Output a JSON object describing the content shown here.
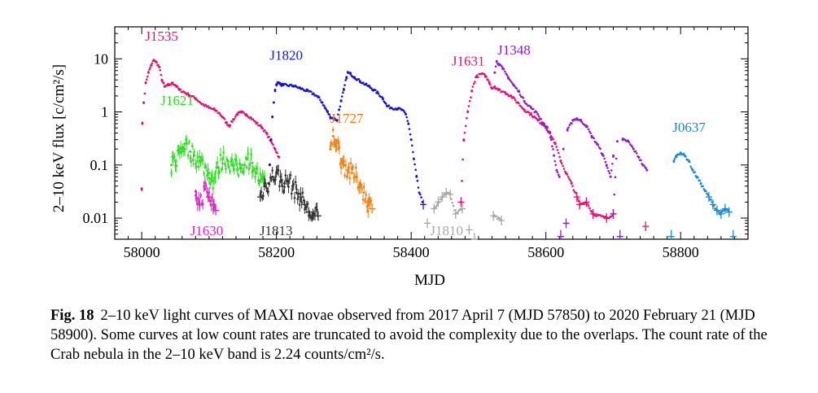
{
  "figure": {
    "chart_data": {
      "type": "scatter",
      "xlabel": "MJD",
      "ylabel": "2–10 keV flux [c/cm²/s]",
      "xlim": [
        57960,
        58900
      ],
      "ylim_log": [
        0.004,
        40
      ],
      "y_scale": "log",
      "x_ticks": [
        58000,
        58200,
        58400,
        58600,
        58800
      ],
      "x_tick_labels": [
        "58000",
        "58200",
        "58400",
        "58600",
        "58800"
      ],
      "y_ticks": [
        0.01,
        0.1,
        1,
        10
      ],
      "y_tick_labels": [
        "0.01",
        "0.1",
        "1",
        "10"
      ],
      "series": [
        {
          "name": "J1535",
          "color": "#e8106e",
          "label_pos": [
            58005,
            22
          ],
          "points": [
            [
              58000,
              0.036
            ],
            [
              58001,
              0.6
            ],
            [
              58003,
              1.5
            ],
            [
              58006,
              3.5
            ],
            [
              58010,
              5.5
            ],
            [
              58014,
              7.5
            ],
            [
              58018,
              9.5
            ],
            [
              58022,
              8.5
            ],
            [
              58026,
              7
            ],
            [
              58030,
              4
            ],
            [
              58034,
              3
            ],
            [
              58040,
              3.2
            ],
            [
              58046,
              3.5
            ],
            [
              58050,
              3.2
            ],
            [
              58056,
              2.6
            ],
            [
              58062,
              2.4
            ],
            [
              58070,
              2.1
            ],
            [
              58080,
              1.8
            ],
            [
              58090,
              1.4
            ],
            [
              58100,
              1.2
            ],
            [
              58108,
              1.1
            ],
            [
              58115,
              0.95
            ],
            [
              58120,
              0.8
            ],
            [
              58126,
              0.62
            ],
            [
              58130,
              0.55
            ],
            [
              58136,
              0.72
            ],
            [
              58142,
              0.92
            ],
            [
              58148,
              0.98
            ],
            [
              58155,
              0.9
            ],
            [
              58162,
              0.78
            ],
            [
              58170,
              0.62
            ],
            [
              58178,
              0.52
            ],
            [
              58186,
              0.38
            ],
            [
              58192,
              0.28
            ],
            [
              58198,
              0.2
            ],
            [
              58204,
              0.14
            ]
          ]
        },
        {
          "name": "J1820",
          "color": "#1515d8",
          "label_pos": [
            58190,
            9.5
          ],
          "points": [
            [
              58190,
              0.1
            ],
            [
              58192,
              0.3
            ],
            [
              58194,
              0.8
            ],
            [
              58196,
              1.5
            ],
            [
              58198,
              2.6
            ],
            [
              58200,
              3.3
            ],
            [
              58203,
              3.6
            ],
            [
              58206,
              3.3
            ],
            [
              58210,
              3.2
            ],
            [
              58225,
              3.1
            ],
            [
              58235,
              2.8
            ],
            [
              58245,
              2.5
            ],
            [
              58255,
              2.2
            ],
            [
              58262,
              1.9
            ],
            [
              58268,
              1.5
            ],
            [
              58272,
              1.2
            ],
            [
              58276,
              1.0
            ],
            [
              58280,
              0.8
            ],
            [
              58290,
              0.7
            ],
            [
              58293,
              1.1
            ],
            [
              58296,
              1.6
            ],
            [
              58300,
              2.6
            ],
            [
              58304,
              4.5
            ],
            [
              58306,
              5.5
            ],
            [
              58310,
              5.2
            ],
            [
              58316,
              4.5
            ],
            [
              58324,
              3.8
            ],
            [
              58332,
              3.3
            ],
            [
              58338,
              3.0
            ],
            [
              58344,
              2.6
            ],
            [
              58350,
              2.3
            ],
            [
              58358,
              1.8
            ],
            [
              58364,
              1.3
            ],
            [
              58370,
              1.2
            ],
            [
              58380,
              1.15
            ],
            [
              58386,
              1.1
            ],
            [
              58392,
              0.9
            ],
            [
              58396,
              0.6
            ],
            [
              58400,
              0.3
            ],
            [
              58404,
              0.13
            ],
            [
              58408,
              0.06
            ],
            [
              58412,
              0.03
            ],
            [
              58418,
              0.018
            ]
          ]
        },
        {
          "name": "J1621",
          "color": "#28e01a",
          "label_pos": [
            58028,
            1.35
          ],
          "points": [
            [
              58044,
              0.1
            ],
            [
              58050,
              0.12
            ],
            [
              58058,
              0.2
            ],
            [
              58064,
              0.25
            ],
            [
              58072,
              0.18
            ],
            [
              58078,
              0.15
            ],
            [
              58086,
              0.12
            ],
            [
              58094,
              0.09
            ],
            [
              58100,
              0.07
            ],
            [
              58106,
              0.05
            ],
            [
              58114,
              0.09
            ],
            [
              58120,
              0.13
            ],
            [
              58128,
              0.12
            ],
            [
              58134,
              0.1
            ],
            [
              58142,
              0.08
            ],
            [
              58150,
              0.1
            ],
            [
              58156,
              0.13
            ],
            [
              58164,
              0.11
            ],
            [
              58170,
              0.07
            ],
            [
              58176,
              0.05
            ],
            [
              58184,
              0.04
            ]
          ]
        },
        {
          "name": "J1630",
          "color": "#e620c8",
          "label_pos": [
            58072,
            0.0048
          ],
          "points": [
            [
              58080,
              0.032
            ],
            [
              58086,
              0.018
            ],
            [
              58094,
              0.035
            ],
            [
              58100,
              0.025
            ],
            [
              58106,
              0.018
            ],
            [
              58110,
              0.014
            ]
          ]
        },
        {
          "name": "J1813",
          "color": "#333333",
          "label_pos": [
            58175,
            0.0048
          ],
          "points": [
            [
              58176,
              0.025
            ],
            [
              58182,
              0.04
            ],
            [
              58188,
              0.045
            ],
            [
              58194,
              0.06
            ],
            [
              58200,
              0.07
            ],
            [
              58206,
              0.05
            ],
            [
              58212,
              0.045
            ],
            [
              58218,
              0.05
            ],
            [
              58224,
              0.04
            ],
            [
              58230,
              0.03
            ],
            [
              58236,
              0.025
            ],
            [
              58242,
              0.018
            ],
            [
              58248,
              0.013
            ],
            [
              58254,
              0.011
            ],
            [
              58262,
              0.011
            ]
          ]
        },
        {
          "name": "J1727",
          "color": "#f08010",
          "label_pos": [
            58280,
            0.62
          ],
          "points": [
            [
              58280,
              0.2
            ],
            [
              58284,
              0.35
            ],
            [
              58288,
              0.3
            ],
            [
              58292,
              0.2
            ],
            [
              58296,
              0.13
            ],
            [
              58300,
              0.1
            ],
            [
              58306,
              0.08
            ],
            [
              58312,
              0.07
            ],
            [
              58318,
              0.06
            ],
            [
              58324,
              0.045
            ],
            [
              58330,
              0.03
            ],
            [
              58336,
              0.02
            ],
            [
              58342,
              0.015
            ]
          ]
        },
        {
          "name": "J1810",
          "color": "#a8a8a8",
          "label_pos": [
            58428,
            0.0048
          ],
          "points": [
            [
              58424,
              0.008
            ],
            [
              58434,
              0.015
            ],
            [
              58440,
              0.02
            ],
            [
              58446,
              0.025
            ],
            [
              58452,
              0.03
            ],
            [
              58458,
              0.028
            ],
            [
              58466,
              0.012
            ],
            [
              58476,
              0.015
            ],
            [
              58486,
              0.006
            ],
            [
              58494,
              0.004
            ],
            [
              58522,
              0.011
            ],
            [
              58534,
              0.009
            ]
          ]
        },
        {
          "name": "J1631",
          "color": "#e8106e",
          "label_pos": [
            58460,
            7.5
          ],
          "points": [
            [
              58474,
              0.02
            ],
            [
              58478,
              0.3
            ],
            [
              58484,
              1.0
            ],
            [
              58490,
              2.5
            ],
            [
              58496,
              4.5
            ],
            [
              58504,
              5.2
            ],
            [
              58510,
              4.8
            ],
            [
              58516,
              3.6
            ],
            [
              58520,
              2.8
            ],
            [
              58524,
              3
            ],
            [
              58530,
              2.6
            ],
            [
              58540,
              2.3
            ],
            [
              58548,
              2.0
            ],
            [
              58558,
              1.5
            ],
            [
              58568,
              1.1
            ],
            [
              58578,
              0.9
            ],
            [
              58588,
              0.7
            ],
            [
              58598,
              0.55
            ],
            [
              58606,
              0.4
            ],
            [
              58614,
              0.25
            ],
            [
              58622,
              0.12
            ],
            [
              58630,
              0.07
            ],
            [
              58638,
              0.045
            ],
            [
              58646,
              0.025
            ],
            [
              58650,
              0.018
            ],
            [
              58660,
              0.02
            ],
            [
              58670,
              0.012
            ],
            [
              58690,
              0.01
            ],
            [
              58700,
              0.012
            ],
            [
              58748,
              0.007
            ]
          ]
        },
        {
          "name": "J1348",
          "color": "#8e1cd8",
          "label_pos": [
            58528,
            12
          ],
          "points": [
            [
              58524,
              5.5
            ],
            [
              58527,
              9
            ],
            [
              58530,
              8
            ],
            [
              58536,
              6.5
            ],
            [
              58544,
              4.5
            ],
            [
              58552,
              3.2
            ],
            [
              58560,
              2.4
            ],
            [
              58568,
              1.6
            ],
            [
              58578,
              1.2
            ],
            [
              58588,
              0.9
            ],
            [
              58596,
              0.62
            ],
            [
              58602,
              0.5
            ],
            [
              58608,
              0.3
            ],
            [
              58612,
              0.15
            ],
            [
              58616,
              0.08
            ],
            [
              58620,
              0.06
            ],
            [
              58626,
              0.2
            ],
            [
              58632,
              0.45
            ],
            [
              58640,
              0.7
            ],
            [
              58646,
              0.75
            ],
            [
              58652,
              0.68
            ],
            [
              58660,
              0.55
            ],
            [
              58668,
              0.35
            ],
            [
              58676,
              0.25
            ],
            [
              58684,
              0.16
            ],
            [
              58690,
              0.1
            ],
            [
              58696,
              0.06
            ],
            [
              58700,
              0.15
            ],
            [
              58706,
              0.28
            ],
            [
              58714,
              0.3
            ],
            [
              58722,
              0.28
            ],
            [
              58730,
              0.2
            ],
            [
              58738,
              0.14
            ],
            [
              58744,
              0.1
            ],
            [
              58750,
              0.08
            ],
            [
              58622,
              0.0045
            ],
            [
              58630,
              0.008
            ],
            [
              58700,
              0.012
            ],
            [
              58710,
              0.0045
            ]
          ]
        },
        {
          "name": "J0637",
          "color": "#1a88d8",
          "label_pos": [
            58788,
            0.42
          ],
          "points": [
            [
              58790,
              0.12
            ],
            [
              58794,
              0.15
            ],
            [
              58800,
              0.17
            ],
            [
              58806,
              0.15
            ],
            [
              58812,
              0.12
            ],
            [
              58818,
              0.08
            ],
            [
              58824,
              0.06
            ],
            [
              58830,
              0.045
            ],
            [
              58836,
              0.033
            ],
            [
              58842,
              0.025
            ],
            [
              58848,
              0.018
            ],
            [
              58854,
              0.014
            ],
            [
              58860,
              0.012
            ],
            [
              58866,
              0.015
            ],
            [
              58872,
              0.013
            ],
            [
              58878,
              0.0045
            ],
            [
              58786,
              0.0045
            ]
          ]
        }
      ]
    }
  },
  "caption": {
    "label": "Fig. 18",
    "text": "2–10 keV light curves of MAXI novae observed from 2017 April 7 (MJD 57850) to 2020 February 21 (MJD 58900). Some curves at low count rates are truncated to avoid the complexity due to the overlaps. The count rate of the Crab nebula in the 2–10 keV band is 2.24 counts/cm²/s."
  }
}
